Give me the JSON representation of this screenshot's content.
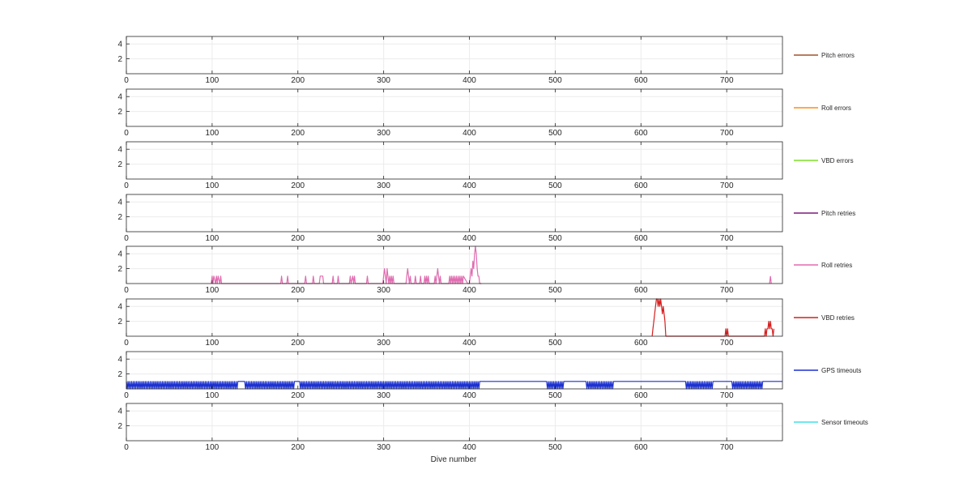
{
  "chart_data": {
    "type": "line",
    "xlabel": "Dive number",
    "grid": true,
    "legend_placement": "right of each panel",
    "panels": [
      {
        "name": "Pitch errors",
        "color": "#a0522d",
        "xlim": [
          0,
          765
        ],
        "ylim": [
          0,
          5
        ],
        "xticks": [
          0,
          100,
          200,
          300,
          400,
          500,
          600,
          700
        ],
        "yticks": [
          2,
          4
        ],
        "x": [],
        "y": []
      },
      {
        "name": "Roll errors",
        "color": "#ff8c1a",
        "xlim": [
          0,
          765
        ],
        "ylim": [
          0,
          5
        ],
        "xticks": [
          0,
          100,
          200,
          300,
          400,
          500,
          600,
          700
        ],
        "yticks": [
          2,
          4
        ],
        "x": [],
        "y": []
      },
      {
        "name": "VBD errors",
        "color": "#7fdd2a",
        "xlim": [
          0,
          765
        ],
        "ylim": [
          0,
          5
        ],
        "xticks": [
          0,
          100,
          200,
          300,
          400,
          500,
          600,
          700
        ],
        "yticks": [
          2,
          4
        ],
        "x": [],
        "y": []
      },
      {
        "name": "Pitch retries",
        "color": "#7b1a7b",
        "xlim": [
          0,
          765
        ],
        "ylim": [
          0,
          5
        ],
        "xticks": [
          0,
          100,
          200,
          300,
          400,
          500,
          600,
          700
        ],
        "yticks": [
          2,
          4
        ],
        "x": [],
        "y": []
      },
      {
        "name": "Roll retries",
        "color": "#e06cb0",
        "xlim": [
          0,
          765
        ],
        "ylim": [
          0,
          5
        ],
        "xticks": [
          0,
          100,
          200,
          300,
          400,
          500,
          600,
          700
        ],
        "yticks": [
          2,
          4
        ],
        "x": [
          99,
          100,
          101,
          102,
          104,
          105,
          106,
          107,
          109,
          110,
          111,
          112,
          180,
          181,
          182,
          183,
          187,
          188,
          189,
          190,
          208,
          209,
          210,
          211,
          217,
          218,
          219,
          220,
          225,
          226,
          227,
          229,
          230,
          231,
          240,
          241,
          242,
          243,
          246,
          247,
          248,
          249,
          260,
          261,
          262,
          264,
          265,
          266,
          267,
          268,
          280,
          281,
          282,
          283,
          299,
          300,
          301,
          302,
          303,
          304,
          305,
          306,
          307,
          308,
          309,
          310,
          311,
          312,
          313,
          314,
          315,
          316,
          317,
          318,
          326,
          327,
          328,
          329,
          330,
          331,
          332,
          333,
          336,
          337,
          338,
          339,
          342,
          343,
          344,
          345,
          347,
          348,
          349,
          350,
          351,
          352,
          353,
          354,
          359,
          360,
          361,
          362,
          363,
          364,
          365,
          366,
          367,
          368,
          369,
          370,
          376,
          377,
          378,
          379,
          380,
          381,
          382,
          383,
          384,
          385,
          386,
          387,
          388,
          389,
          390,
          391,
          392,
          393,
          398,
          399,
          400,
          401,
          402,
          403,
          404,
          405,
          406,
          407,
          408,
          409,
          410,
          411,
          412,
          413,
          414
        ],
        "y": [
          0,
          1,
          0,
          1,
          0,
          1,
          0,
          1,
          0,
          1,
          0,
          0,
          0,
          1,
          0,
          0,
          0,
          1,
          0,
          0,
          0,
          1,
          0,
          0,
          0,
          1,
          0,
          0,
          0,
          1,
          1,
          1,
          0,
          0,
          0,
          1,
          0,
          0,
          0,
          1,
          0,
          0,
          0,
          1,
          0,
          1,
          0,
          1,
          0,
          0,
          0,
          1,
          0,
          0,
          0,
          1,
          2,
          1,
          0,
          2,
          1,
          0,
          1,
          0,
          1,
          0,
          1,
          0,
          0,
          0,
          0,
          0,
          0,
          0,
          0,
          1,
          2,
          1,
          0,
          1,
          0,
          0,
          0,
          1,
          0,
          0,
          0,
          1,
          0,
          0,
          0,
          1,
          0,
          1,
          0,
          1,
          0,
          0,
          0,
          1,
          0,
          1,
          2,
          1,
          0,
          1,
          0,
          0,
          0,
          0,
          0,
          1,
          0,
          1,
          0,
          1,
          0,
          1,
          0,
          1,
          0,
          1,
          0,
          1,
          0,
          1,
          0,
          1,
          0,
          0,
          0,
          1,
          2,
          1,
          3,
          2,
          4,
          5,
          4,
          2,
          1,
          1,
          0,
          0,
          0
        ],
        "x_extra": [
          750,
          751,
          752
        ],
        "y_extra": [
          0,
          1,
          0
        ]
      },
      {
        "name": "VBD retries",
        "color": "#d51f1f",
        "xlim": [
          0,
          765
        ],
        "ylim": [
          0,
          5
        ],
        "xticks": [
          0,
          100,
          200,
          300,
          400,
          500,
          600,
          700
        ],
        "yticks": [
          2,
          4
        ],
        "x": [
          613,
          614,
          615,
          616,
          617,
          618,
          619,
          620,
          621,
          622,
          623,
          624,
          625,
          626,
          627,
          628,
          629,
          698,
          699,
          700,
          701,
          702,
          703,
          744,
          745,
          746,
          747,
          748,
          749,
          750,
          751,
          752,
          753,
          754,
          755
        ],
        "y": [
          0,
          1,
          2,
          3,
          4,
          5,
          5,
          4,
          5,
          4,
          5,
          4,
          3,
          4,
          3,
          2,
          0,
          0,
          1,
          0,
          1,
          0,
          0,
          0,
          1,
          0,
          1,
          1,
          2,
          1,
          2,
          1,
          1,
          0,
          1
        ]
      },
      {
        "name": "GPS timeouts",
        "color": "#1a2fd0",
        "xlim": [
          0,
          765
        ],
        "ylim": [
          0,
          5
        ],
        "xticks": [
          0,
          100,
          200,
          300,
          400,
          500,
          600,
          700
        ],
        "yticks": [
          2,
          4
        ],
        "toggle_ranges": [
          [
            1,
            130
          ],
          [
            138,
            195
          ],
          [
            203,
            412
          ],
          [
            490,
            510
          ],
          [
            537,
            568
          ],
          [
            652,
            683
          ],
          [
            707,
            742
          ]
        ],
        "steady_value": 1
      },
      {
        "name": "Sensor timeouts",
        "color": "#3fe0e8",
        "xlim": [
          0,
          765
        ],
        "ylim": [
          0,
          5
        ],
        "xticks": [
          0,
          100,
          200,
          300,
          400,
          500,
          600,
          700
        ],
        "yticks": [
          2,
          4
        ],
        "x": [],
        "y": []
      }
    ]
  }
}
